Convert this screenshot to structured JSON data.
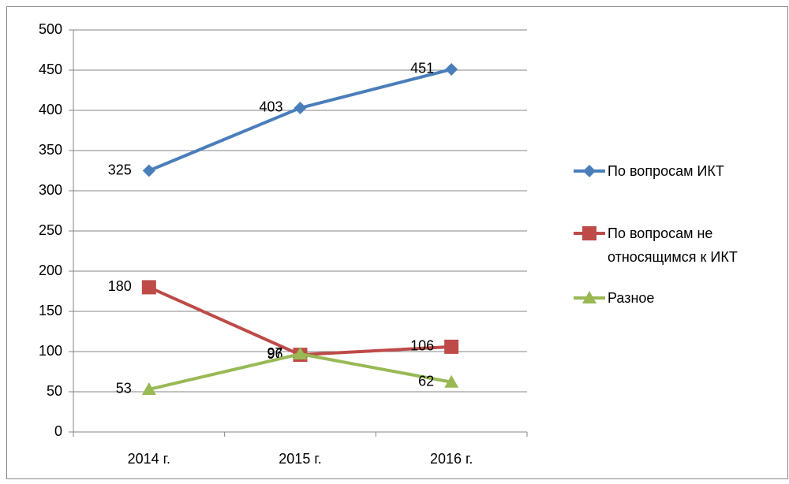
{
  "chart_data": {
    "type": "line",
    "categories": [
      "2014 г.",
      "2015 г.",
      "2016 г."
    ],
    "series": [
      {
        "name": "По вопросам ИКТ",
        "color": "#4a7ebb",
        "marker": "diamond",
        "values": [
          325,
          403,
          451
        ]
      },
      {
        "name": "По вопросам не относящимся к ИКТ",
        "color": "#be4b48",
        "marker": "square",
        "values": [
          180,
          96,
          106
        ]
      },
      {
        "name": "Разное",
        "color": "#98b954",
        "marker": "triangle",
        "values": [
          53,
          97,
          62
        ]
      }
    ],
    "ylim": [
      0,
      500
    ],
    "yticks": [
      0,
      50,
      100,
      150,
      200,
      250,
      300,
      350,
      400,
      450,
      500
    ],
    "grid": true,
    "legend": "right",
    "data_labels": true
  }
}
